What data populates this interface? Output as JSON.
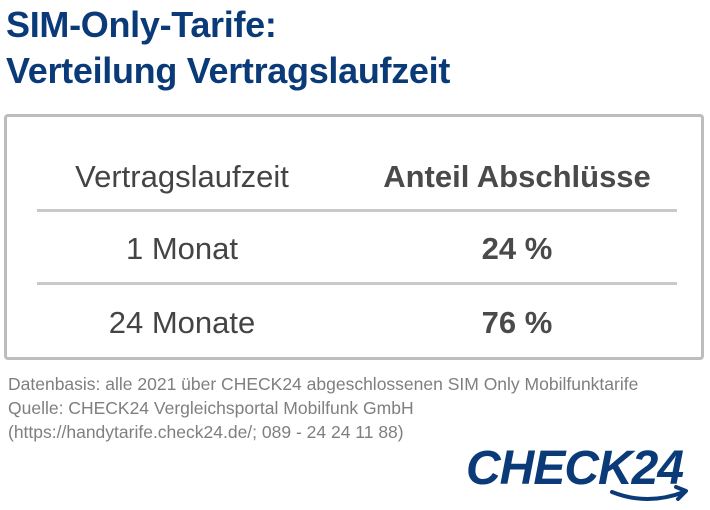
{
  "title": {
    "line1": "SIM-Only-Tarife:",
    "line2": "Verteilung Vertragslaufzeit"
  },
  "chart_data": {
    "type": "table",
    "columns": [
      "Vertragslaufzeit",
      "Anteil Abschlüsse"
    ],
    "rows": [
      [
        "1 Monat",
        "24 %"
      ],
      [
        "24 Monate",
        "76 %"
      ]
    ],
    "values": [
      24,
      76
    ],
    "unit": "%"
  },
  "footnote": {
    "line1": "Datenbasis: alle 2021 über CHECK24 abgeschlossenen SIM Only Mobilfunktarife",
    "line2": "Quelle: CHECK24 Vergleichsportal Mobilfunk GmbH",
    "line3": "(https://handytarife.check24.de/; 089 - 24 24 11 88)"
  },
  "logo": {
    "text": "CHECK24",
    "color": "#0b3a78"
  },
  "colors": {
    "title": "#0b3a78",
    "text": "#444444",
    "border": "#bdbdbd",
    "footnote": "#7f7f7f"
  }
}
